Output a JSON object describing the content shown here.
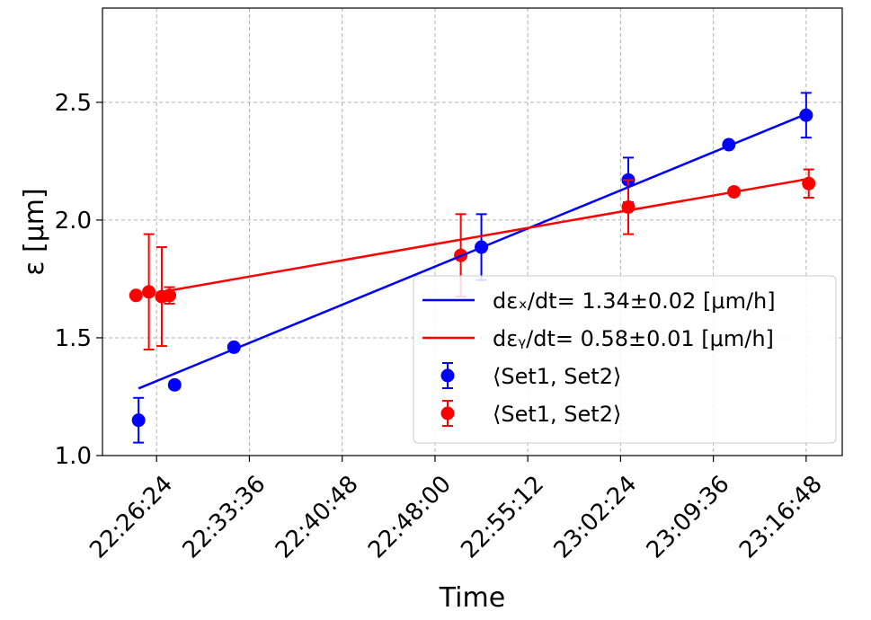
{
  "chart_data": {
    "type": "scatter",
    "xlabel": "Time",
    "ylabel": "ε [μm]",
    "x_ticks": [
      "22:26:24",
      "22:33:36",
      "22:40:48",
      "22:48:00",
      "22:55:12",
      "23:02:24",
      "23:09:36",
      "23:16:48"
    ],
    "y_ticks": [
      "1.0",
      "1.5",
      "2.0",
      "2.5"
    ],
    "xlim": [
      "22:22:12",
      "23:19:36"
    ],
    "ylim": [
      1.0,
      2.9
    ],
    "grid": true,
    "legend_position": "lower-right",
    "series": [
      {
        "name": "⟨Set1, Set2⟩",
        "kind": "errorbar",
        "color": "#0000ff",
        "points": [
          {
            "x": "22:25:00",
            "y": 1.15,
            "err": 0.095
          },
          {
            "x": "22:27:48",
            "y": 1.3,
            "err": 0.015
          },
          {
            "x": "22:32:24",
            "y": 1.46,
            "err": 0.01
          },
          {
            "x": "22:51:36",
            "y": 1.885,
            "err": 0.14
          },
          {
            "x": "23:03:00",
            "y": 2.17,
            "err": 0.095
          },
          {
            "x": "23:10:48",
            "y": 2.32,
            "err": 0.01
          },
          {
            "x": "23:16:48",
            "y": 2.445,
            "err": 0.095
          }
        ]
      },
      {
        "name": "⟨Set1, Set2⟩",
        "kind": "errorbar",
        "color": "#ff0000",
        "points": [
          {
            "x": "22:24:48",
            "y": 1.68,
            "err": 0.01
          },
          {
            "x": "22:25:48",
            "y": 1.695,
            "err": 0.245
          },
          {
            "x": "22:26:48",
            "y": 1.675,
            "err": 0.21
          },
          {
            "x": "22:27:24",
            "y": 1.68,
            "err": 0.035
          },
          {
            "x": "22:50:00",
            "y": 1.85,
            "err": 0.175
          },
          {
            "x": "23:03:00",
            "y": 2.055,
            "err": 0.115
          },
          {
            "x": "23:11:12",
            "y": 2.12,
            "err": 0.01
          },
          {
            "x": "23:17:00",
            "y": 2.155,
            "err": 0.06
          }
        ]
      },
      {
        "name": "dεₓ/dt= 1.34±0.02 [μm/h]",
        "kind": "line",
        "color": "#0000ff",
        "x": [
          "22:25:00",
          "23:16:48"
        ],
        "y": [
          1.285,
          2.45
        ]
      },
      {
        "name": "dεᵧ/dt= 0.58±0.01 [μm/h]",
        "kind": "line",
        "color": "#ff0000",
        "x": [
          "22:26:48",
          "23:17:00"
        ],
        "y": [
          1.695,
          2.175
        ]
      }
    ],
    "legend": [
      {
        "label": "dεₓ/dt= 1.34±0.02 [μm/h]",
        "kind": "line",
        "color": "#0000ff"
      },
      {
        "label": "dεᵧ/dt= 0.58±0.01 [μm/h]",
        "kind": "line",
        "color": "#ff0000"
      },
      {
        "label": "⟨Set1, Set2⟩",
        "kind": "errorbar",
        "color": "#0000ff"
      },
      {
        "label": "⟨Set1, Set2⟩",
        "kind": "errorbar",
        "color": "#ff0000"
      }
    ]
  }
}
